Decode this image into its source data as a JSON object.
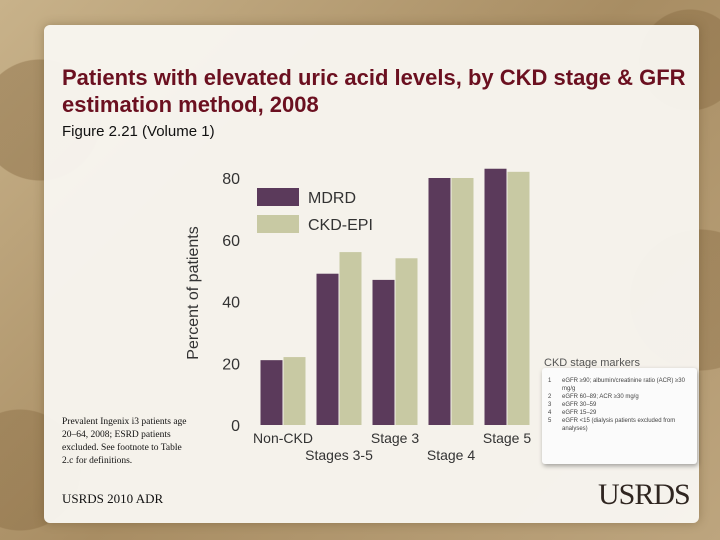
{
  "slide": {
    "title": "Patients with elevated uric acid levels, by CKD stage & GFR estimation method, 2008",
    "subtitle": "Figure 2.21 (Volume 1)",
    "note": "Prevalent Ingenix i3 patients age 20–64, 2008; ESRD patients excluded. See footnote to Table 2.c for definitions.",
    "footer": "USRDS 2010 ADR",
    "logo": "USRDS"
  },
  "markers": {
    "title": "CKD stage markers",
    "items": [
      {
        "num": "1",
        "text": "eGFR ≥90; albumin/creatinine ratio (ACR) ≥30 mg/g"
      },
      {
        "num": "2",
        "text": "eGFR 60–89; ACR ≥30 mg/g"
      },
      {
        "num": "3",
        "text": "eGFR 30–59"
      },
      {
        "num": "4",
        "text": "eGFR 15–29"
      },
      {
        "num": "5",
        "text": "eGFR <15 (dialysis patients excluded from analyses)"
      }
    ]
  },
  "chart_data": {
    "type": "bar",
    "title": "",
    "xlabel": "",
    "ylabel": "Percent of patients",
    "ylim": [
      0,
      80
    ],
    "yticks": [
      0,
      20,
      40,
      60,
      80
    ],
    "categories": [
      "Non-CKD",
      "Stages 3-5",
      "Stage 3",
      "Stage 4",
      "Stage 5"
    ],
    "series": [
      {
        "name": "MDRD",
        "color": "#5b3a5b",
        "values": [
          21,
          49,
          47,
          80,
          83
        ]
      },
      {
        "name": "CKD-EPI",
        "color": "#c8c9a3",
        "values": [
          22,
          56,
          54,
          80,
          82
        ]
      }
    ],
    "legend_position": "top-left",
    "grid": false
  }
}
